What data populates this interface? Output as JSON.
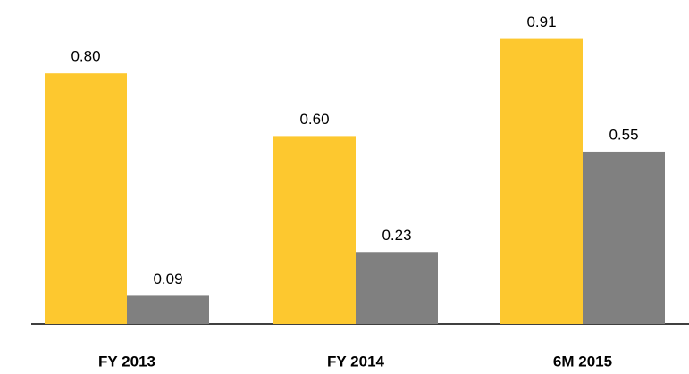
{
  "chart_data": {
    "type": "bar",
    "categories": [
      "FY 2013",
      "FY 2014",
      "6M 2015"
    ],
    "series": [
      {
        "color": "#fdc82f",
        "values": [
          0.8,
          0.6,
          0.91
        ],
        "value_labels": [
          "0.80",
          "0.60",
          "0.91"
        ]
      },
      {
        "color": "#808080",
        "values": [
          0.09,
          0.23,
          0.55
        ],
        "value_labels": [
          "0.09",
          "0.23",
          "0.55"
        ]
      }
    ]
  }
}
